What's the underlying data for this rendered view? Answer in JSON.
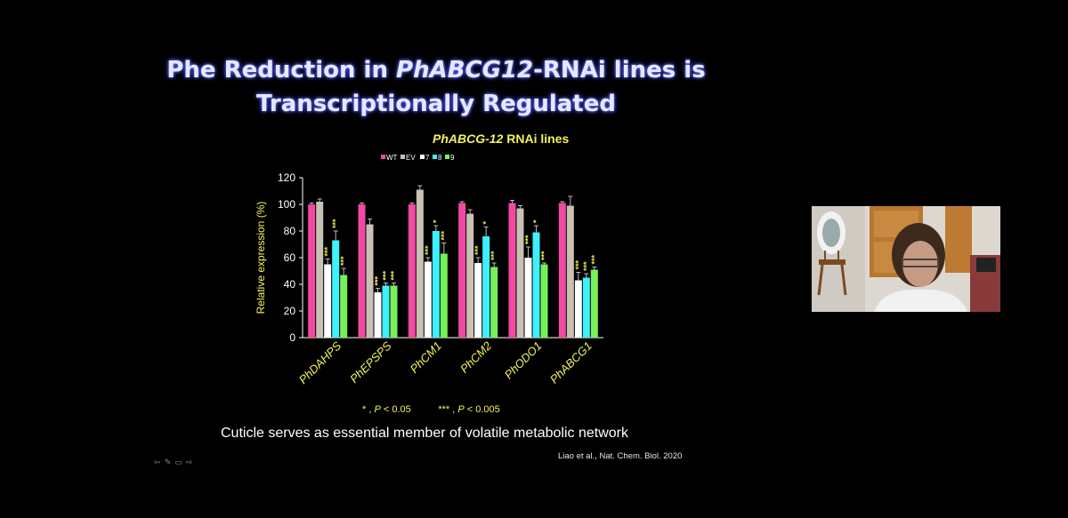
{
  "slide": {
    "title_line1_pre": "Phe Reduction in ",
    "title_line1_em": "PhABCG12",
    "title_line1_post": "-RNAi lines is",
    "title_line2": "Transcriptionally Regulated",
    "chart_title_em": "PhABCG-12",
    "chart_title_rest": " RNAi lines",
    "footnote_star": "* ,",
    "footnote_star_p": "P",
    "footnote_star_val": " < 0.05",
    "footnote_triple": "*** ,",
    "footnote_triple_p": "P",
    "footnote_triple_val": " < 0.005",
    "caption": "Cuticle serves as essential member of volatile metabolic network",
    "citation": "Liao et al.,  Nat. Chem. Biol. 2020"
  },
  "slide_nav": {
    "icons": [
      "prev-arrow-icon",
      "pen-icon",
      "menu-icon",
      "next-arrow-icon"
    ],
    "glyphs": [
      "⇦",
      "✎",
      "▭",
      "⇨"
    ]
  },
  "webcam": {
    "description_icon": "presenter-video-icon"
  },
  "colors": {
    "WT": "#f04aa3",
    "EV": "#c9c1b4",
    "7": "#ffffff",
    "8": "#3ff0ff",
    "9": "#79ef58",
    "axis_text": "#f2f25a"
  },
  "chart_data": {
    "type": "bar",
    "title": "PhABCG-12 RNAi lines",
    "ylabel": "Relative expression (%)",
    "xlabel": "",
    "ylim": [
      0,
      120
    ],
    "yticks": [
      0,
      20,
      40,
      60,
      80,
      100,
      120
    ],
    "legend_position": "top",
    "categories": [
      "PhDAHPS",
      "PhEPSPS",
      "PhCM1",
      "PhCM2",
      "PhODO1",
      "PhABCG1"
    ],
    "series": [
      {
        "name": "WT",
        "values": [
          100,
          100,
          100,
          101,
          101,
          101
        ],
        "errors": [
          1,
          1,
          1,
          1,
          2,
          1
        ],
        "sig": [
          "",
          "",
          "",
          "",
          "",
          ""
        ]
      },
      {
        "name": "EV",
        "values": [
          102,
          85,
          111,
          93,
          97,
          99
        ],
        "errors": [
          2,
          4,
          3,
          3,
          2,
          7
        ],
        "sig": [
          "",
          "",
          "",
          "",
          "",
          ""
        ]
      },
      {
        "name": "7",
        "values": [
          55,
          34,
          57,
          56,
          60,
          43
        ],
        "errors": [
          4,
          3,
          3,
          4,
          8,
          6
        ],
        "sig": [
          "***",
          "***",
          "***",
          "***",
          "***",
          "***"
        ]
      },
      {
        "name": "8",
        "values": [
          73,
          39,
          80,
          76,
          79,
          45
        ],
        "errors": [
          7,
          2,
          4,
          7,
          5,
          3
        ],
        "sig": [
          "***",
          "***",
          "*",
          "*",
          "*",
          "***"
        ]
      },
      {
        "name": "9",
        "values": [
          47,
          39,
          63,
          53,
          55,
          51
        ],
        "errors": [
          5,
          2,
          8,
          3,
          1,
          2
        ],
        "sig": [
          "***",
          "***",
          "***",
          "***",
          "***",
          "***"
        ]
      }
    ]
  }
}
